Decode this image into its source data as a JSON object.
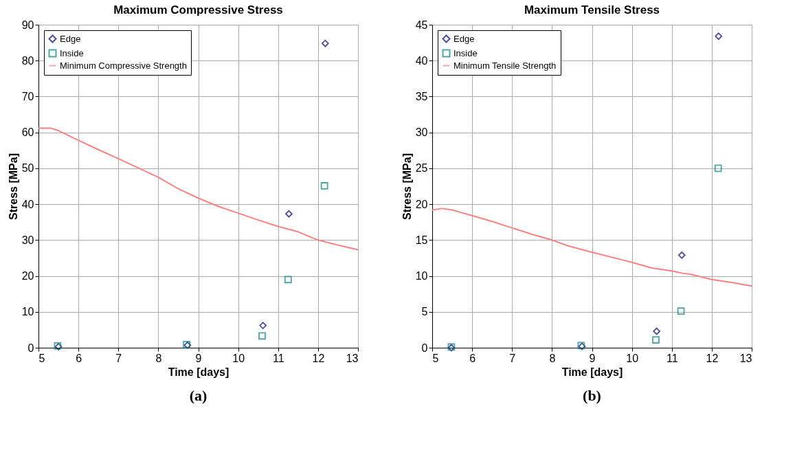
{
  "chart_data": [
    {
      "type": "scatter",
      "title": "Maximum Compressive Stress",
      "xlabel": "Time [days]",
      "ylabel": "Stress [MPa]",
      "xlim": [
        5,
        13
      ],
      "xticks": [
        5,
        6,
        7,
        8,
        9,
        10,
        11,
        12,
        13
      ],
      "ylim": [
        0,
        90
      ],
      "yticks": [
        0,
        10,
        20,
        30,
        40,
        50,
        60,
        70,
        80,
        90
      ],
      "grid": true,
      "legend": "top left",
      "annotations": [
        "(a)"
      ],
      "series": [
        {
          "name": "Edge",
          "type": "scatter",
          "marker": "diamond",
          "color": "#000080",
          "x": [
            5.5,
            8.73,
            10.62,
            11.27,
            12.18
          ],
          "values": [
            0.3,
            0.7,
            6.2,
            37.3,
            84.8
          ]
        },
        {
          "name": "Inside",
          "type": "scatter",
          "marker": "square",
          "color": "#008080",
          "x": [
            5.48,
            8.71,
            10.6,
            11.25,
            12.16
          ],
          "values": [
            0.5,
            0.9,
            3.3,
            19,
            45.1
          ]
        },
        {
          "name": "Minimum Compressive Strength",
          "type": "line",
          "marker": "none",
          "color": "#ff8080",
          "x": [
            5,
            5.3,
            5.5,
            6,
            6.5,
            7,
            7.5,
            8,
            8.5,
            9,
            9.5,
            10,
            10.5,
            11,
            11.5,
            12,
            12.5,
            13
          ],
          "values": [
            61.2,
            61.2,
            60.5,
            57.8,
            55.2,
            52.7,
            50.1,
            47.5,
            44.3,
            41.7,
            39.4,
            37.5,
            35.6,
            33.8,
            32.3,
            30.0,
            28.6,
            27.3
          ]
        }
      ]
    },
    {
      "type": "scatter",
      "title": "Maximum Tensile Stress",
      "xlabel": "Time [days]",
      "ylabel": "Stress [MPa]",
      "xlim": [
        5,
        13
      ],
      "xticks": [
        5,
        6,
        7,
        8,
        9,
        10,
        11,
        12,
        13
      ],
      "ylim": [
        0,
        45
      ],
      "yticks": [
        0,
        5,
        10,
        15,
        20,
        25,
        30,
        35,
        40,
        45
      ],
      "grid": true,
      "legend": "top left",
      "annotations": [
        "(b)"
      ],
      "series": [
        {
          "name": "Edge",
          "type": "scatter",
          "marker": "diamond",
          "color": "#000080",
          "x": [
            5.48,
            8.75,
            10.62,
            11.25,
            12.17
          ],
          "values": [
            0,
            0.2,
            2.3,
            12.9,
            43.4
          ]
        },
        {
          "name": "Inside",
          "type": "scatter",
          "marker": "square",
          "color": "#008080",
          "x": [
            5.48,
            8.73,
            10.6,
            11.23,
            12.16
          ],
          "values": [
            0.1,
            0.3,
            1.1,
            5.1,
            25.0
          ]
        },
        {
          "name": "Minimum Tensile Strength",
          "type": "line",
          "marker": "none",
          "color": "#ff8080",
          "x": [
            5,
            5.25,
            5.5,
            5.75,
            6,
            6.5,
            7,
            7.5,
            8,
            8.4,
            9,
            9.5,
            10,
            10.5,
            11,
            11.25,
            11.5,
            12,
            12.5,
            13
          ],
          "values": [
            19.2,
            19.4,
            19.2,
            18.8,
            18.4,
            17.6,
            16.7,
            15.8,
            15.0,
            14.2,
            13.3,
            12.6,
            11.9,
            11.1,
            10.7,
            10.4,
            10.2,
            9.5,
            9.1,
            8.6
          ]
        }
      ]
    }
  ]
}
